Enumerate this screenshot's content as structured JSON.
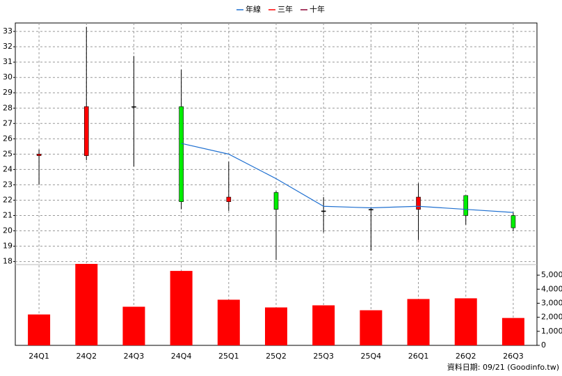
{
  "chart_data": [
    {
      "type": "candlestick",
      "categories": [
        "24Q1",
        "24Q2",
        "24Q3",
        "24Q4",
        "25Q1",
        "25Q2",
        "25Q3",
        "25Q4",
        "26Q1",
        "26Q2",
        "26Q3"
      ],
      "open": [
        24.9,
        24.9,
        28.1,
        28.1,
        21.9,
        22.5,
        21.3,
        21.4,
        21.4,
        22.3,
        21.0
      ],
      "high": [
        25.3,
        33.3,
        31.4,
        30.5,
        24.5,
        22.6,
        22.2,
        21.5,
        23.1,
        22.3,
        21.2
      ],
      "low": [
        23.0,
        24.6,
        24.2,
        21.4,
        21.3,
        18.1,
        19.9,
        18.7,
        19.4,
        20.4,
        20.0
      ],
      "close": [
        25.0,
        28.1,
        28.1,
        21.9,
        22.2,
        21.4,
        21.3,
        21.4,
        22.2,
        21.0,
        20.2
      ],
      "up_color": "#ff0000",
      "down_color": "#00ee00",
      "series": [
        {
          "name": "年線",
          "color": "#1e6fd0",
          "values": [
            null,
            null,
            null,
            25.7,
            25.0,
            23.4,
            21.6,
            21.5,
            21.6,
            21.4,
            21.2
          ]
        },
        {
          "name": "三年",
          "color": "#ff0000",
          "values": [
            null,
            null,
            null,
            null,
            null,
            null,
            null,
            null,
            null,
            null,
            null
          ]
        },
        {
          "name": "十年",
          "color": "#8b0033",
          "values": [
            null,
            null,
            null,
            null,
            null,
            null,
            null,
            null,
            null,
            null,
            null
          ]
        }
      ],
      "ylim": [
        17.8,
        33.55
      ],
      "yticks": [
        18,
        19,
        20,
        21,
        22,
        23,
        24,
        25,
        26,
        27,
        28,
        29,
        30,
        31,
        32,
        33
      ],
      "grid": true,
      "legend": "top"
    },
    {
      "type": "bar",
      "values": [
        2200,
        5800,
        2750,
        5300,
        3250,
        2700,
        2850,
        2500,
        3300,
        3350,
        1950
      ],
      "color": "#ff0000",
      "ylim": [
        0,
        5750
      ],
      "yticks": [
        0,
        {
          "value": 1000,
          "label": "1,000"
        },
        {
          "value": 2000,
          "label": "2,000"
        },
        {
          "value": 3000,
          "label": "3,000"
        },
        {
          "value": 4000,
          "label": "4,000"
        },
        {
          "value": 5000,
          "label": "5,000"
        }
      ],
      "footer": "資料日期: 09/21  (Goodinfo.tw)"
    }
  ]
}
